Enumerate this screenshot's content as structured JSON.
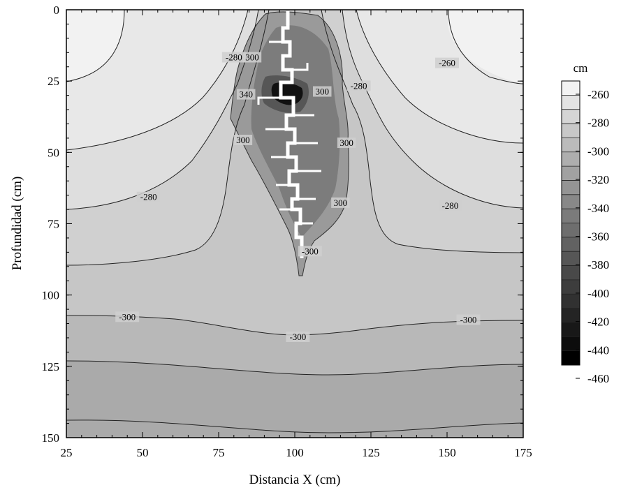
{
  "chart_data": {
    "type": "contour",
    "xlabel": "Distancia X (cm)",
    "ylabel": "Profundidad (cm)",
    "xlim": [
      25,
      175
    ],
    "ylim": [
      0,
      150
    ],
    "y_inverted": true,
    "x_ticks": [
      "25",
      "50",
      "75",
      "100",
      "125",
      "150",
      "175"
    ],
    "y_ticks": [
      "0",
      "25",
      "50",
      "75",
      "100",
      "125",
      "150"
    ],
    "colorbar": {
      "title": "cm",
      "levels": [
        -260,
        -270,
        -280,
        -290,
        -300,
        -310,
        -320,
        -330,
        -340,
        -350,
        -360,
        -370,
        -380,
        -390,
        -400,
        -410,
        -420,
        -430,
        -440,
        -450,
        -460
      ],
      "tick_labels": [
        "-260",
        "-280",
        "-300",
        "-320",
        "-340",
        "-360",
        "-380",
        "-400",
        "-420",
        "-440",
        "-460"
      ],
      "color_light": "#f2f2f2",
      "color_dark": "#000000"
    },
    "contour_labels": [
      {
        "text": "-260",
        "x": 150,
        "y": 19
      },
      {
        "text": "-280",
        "x": 80,
        "y": 17
      },
      {
        "text": "-280",
        "x": 121,
        "y": 27
      },
      {
        "text": "-280",
        "x": 52,
        "y": 66
      },
      {
        "text": "-280",
        "x": 151,
        "y": 69
      },
      {
        "text": "300",
        "x": 86,
        "y": 17
      },
      {
        "text": "340",
        "x": 84,
        "y": 30
      },
      {
        "text": "300",
        "x": 109,
        "y": 29
      },
      {
        "text": "300",
        "x": 83,
        "y": 46
      },
      {
        "text": "300",
        "x": 117,
        "y": 47
      },
      {
        "text": "300",
        "x": 115,
        "y": 68
      },
      {
        "text": "-300",
        "x": 105,
        "y": 85
      },
      {
        "text": "-300",
        "x": 45,
        "y": 108
      },
      {
        "text": "-300",
        "x": 101,
        "y": 115
      },
      {
        "text": "-300",
        "x": 157,
        "y": 109
      }
    ]
  }
}
